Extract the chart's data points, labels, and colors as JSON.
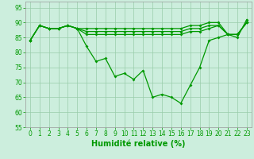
{
  "title": "",
  "xlabel": "Humidité relative (%)",
  "ylabel": "",
  "background_color": "#cceedd",
  "grid_color": "#99ccaa",
  "line_color": "#009900",
  "marker_color": "#009900",
  "xlim": [
    -0.5,
    23.5
  ],
  "ylim": [
    55,
    97
  ],
  "yticks": [
    55,
    60,
    65,
    70,
    75,
    80,
    85,
    90,
    95
  ],
  "xticks": [
    0,
    1,
    2,
    3,
    4,
    5,
    6,
    7,
    8,
    9,
    10,
    11,
    12,
    13,
    14,
    15,
    16,
    17,
    18,
    19,
    20,
    21,
    22,
    23
  ],
  "series": [
    [
      84,
      89,
      88,
      88,
      89,
      88,
      82,
      77,
      78,
      72,
      73,
      71,
      74,
      65,
      66,
      65,
      63,
      69,
      75,
      84,
      85,
      86,
      85,
      91
    ],
    [
      84,
      89,
      88,
      88,
      89,
      88,
      88,
      88,
      88,
      88,
      88,
      88,
      88,
      88,
      88,
      88,
      88,
      89,
      89,
      90,
      90,
      86,
      86,
      90
    ],
    [
      84,
      89,
      88,
      88,
      89,
      88,
      87,
      87,
      87,
      87,
      87,
      87,
      87,
      87,
      87,
      87,
      87,
      88,
      88,
      89,
      89,
      86,
      86,
      90
    ],
    [
      84,
      89,
      88,
      88,
      89,
      88,
      86,
      86,
      86,
      86,
      86,
      86,
      86,
      86,
      86,
      86,
      86,
      87,
      87,
      88,
      89,
      86,
      86,
      90
    ]
  ],
  "show_markers": [
    true,
    true,
    true,
    true
  ],
  "marker_size": 2.0,
  "linewidth": 0.9,
  "tick_fontsize": 5.5,
  "xlabel_fontsize": 7,
  "xlabel_fontweight": "bold",
  "xlabel_color": "#009900",
  "tick_color": "#009900"
}
